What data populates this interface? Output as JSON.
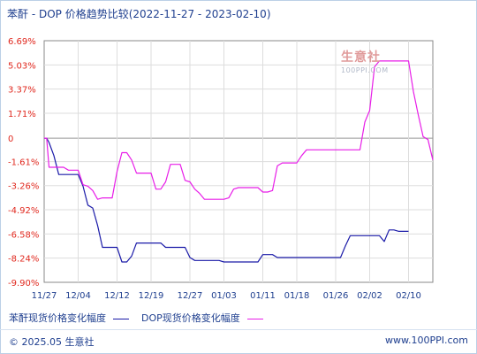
{
  "title": "苯酐 - DOP 价格趋势比较(2022-11-27 - 2023-02-10)",
  "watermark": {
    "logo": "生意社",
    "url": "100PPI.COM"
  },
  "footer": {
    "copyright": "© 2025.05 生意社",
    "site": "www.100PPI.com"
  },
  "colors": {
    "series_1": "#1a1aa8",
    "series_2": "#e81ee8",
    "grid": "#cccccc",
    "text": "#1f3f8f"
  },
  "chart_data": {
    "type": "line",
    "title": "苯酐 - DOP 价格趋势比较(2022-11-27 - 2023-02-10)",
    "xlabel": "",
    "ylabel": "",
    "ylim": [
      -9.9,
      6.69
    ],
    "yticks": [
      "6.69%",
      "5.03%",
      "3.37%",
      "1.71%",
      "0",
      "-1.61%",
      "-3.26%",
      "-4.92%",
      "-6.58%",
      "-8.24%",
      "-9.90%"
    ],
    "ytick_values": [
      6.69,
      5.03,
      3.37,
      1.71,
      0,
      -1.61,
      -3.26,
      -4.92,
      -6.58,
      -8.24,
      -9.9
    ],
    "xticks": [
      "11/27",
      "12/04",
      "12/12",
      "12/19",
      "12/27",
      "01/03",
      "01/11",
      "01/18",
      "01/26",
      "02/02",
      "02/10"
    ],
    "xtick_days": [
      0,
      7,
      15,
      22,
      30,
      37,
      45,
      52,
      60,
      67,
      75
    ],
    "grid": true,
    "legend_position": "bottom",
    "series": [
      {
        "name": "苯酐现货价格变化幅度",
        "color": "#1a1aa8",
        "points": [
          [
            0,
            0
          ],
          [
            0.5,
            0
          ],
          [
            1,
            -0.3
          ],
          [
            2,
            -1.2
          ],
          [
            3,
            -2.5
          ],
          [
            4,
            -2.5
          ],
          [
            5,
            -2.5
          ],
          [
            6,
            -2.5
          ],
          [
            7,
            -2.5
          ],
          [
            8,
            -3.3
          ],
          [
            9,
            -4.6
          ],
          [
            10,
            -4.8
          ],
          [
            11,
            -6.0
          ],
          [
            12,
            -7.5
          ],
          [
            13,
            -7.5
          ],
          [
            14,
            -7.5
          ],
          [
            15,
            -7.5
          ],
          [
            16,
            -8.5
          ],
          [
            17,
            -8.5
          ],
          [
            18,
            -8.1
          ],
          [
            19,
            -7.2
          ],
          [
            20,
            -7.2
          ],
          [
            21,
            -7.2
          ],
          [
            22,
            -7.2
          ],
          [
            23,
            -7.2
          ],
          [
            24,
            -7.2
          ],
          [
            25,
            -7.5
          ],
          [
            26,
            -7.5
          ],
          [
            27,
            -7.5
          ],
          [
            28,
            -7.5
          ],
          [
            29,
            -7.5
          ],
          [
            30,
            -8.2
          ],
          [
            31,
            -8.4
          ],
          [
            32,
            -8.4
          ],
          [
            33,
            -8.4
          ],
          [
            34,
            -8.4
          ],
          [
            35,
            -8.4
          ],
          [
            36,
            -8.4
          ],
          [
            37,
            -8.5
          ],
          [
            38,
            -8.5
          ],
          [
            39,
            -8.5
          ],
          [
            40,
            -8.5
          ],
          [
            41,
            -8.5
          ],
          [
            42,
            -8.5
          ],
          [
            43,
            -8.5
          ],
          [
            44,
            -8.5
          ],
          [
            45,
            -8.0
          ],
          [
            46,
            -8.0
          ],
          [
            47,
            -8.0
          ],
          [
            48,
            -8.2
          ],
          [
            49,
            -8.2
          ],
          [
            50,
            -8.2
          ],
          [
            51,
            -8.2
          ],
          [
            52,
            -8.2
          ],
          [
            53,
            -8.2
          ],
          [
            54,
            -8.2
          ],
          [
            55,
            -8.2
          ],
          [
            56,
            -8.2
          ],
          [
            57,
            -8.2
          ],
          [
            58,
            -8.2
          ],
          [
            59,
            -8.2
          ],
          [
            60,
            -8.2
          ],
          [
            61,
            -8.2
          ],
          [
            62,
            -7.4
          ],
          [
            63,
            -6.7
          ],
          [
            64,
            -6.7
          ],
          [
            65,
            -6.7
          ],
          [
            66,
            -6.7
          ],
          [
            67,
            -6.7
          ],
          [
            68,
            -6.7
          ],
          [
            69,
            -6.7
          ],
          [
            70,
            -7.1
          ],
          [
            71,
            -6.3
          ],
          [
            72,
            -6.3
          ],
          [
            73,
            -6.4
          ],
          [
            74,
            -6.4
          ],
          [
            75,
            -6.4
          ]
        ]
      },
      {
        "name": "DOP现货价格变化幅度",
        "color": "#e81ee8",
        "points": [
          [
            0,
            0
          ],
          [
            0.5,
            0
          ],
          [
            1,
            -2.0
          ],
          [
            2,
            -2.0
          ],
          [
            3,
            -2.0
          ],
          [
            4,
            -2.0
          ],
          [
            5,
            -2.2
          ],
          [
            6,
            -2.2
          ],
          [
            7,
            -2.2
          ],
          [
            8,
            -3.2
          ],
          [
            9,
            -3.3
          ],
          [
            10,
            -3.6
          ],
          [
            11,
            -4.2
          ],
          [
            12,
            -4.1
          ],
          [
            13,
            -4.1
          ],
          [
            14,
            -4.1
          ],
          [
            15,
            -2.3
          ],
          [
            16,
            -1.0
          ],
          [
            17,
            -1.0
          ],
          [
            18,
            -1.5
          ],
          [
            19,
            -2.4
          ],
          [
            20,
            -2.4
          ],
          [
            21,
            -2.4
          ],
          [
            22,
            -2.4
          ],
          [
            23,
            -3.5
          ],
          [
            24,
            -3.5
          ],
          [
            25,
            -3.0
          ],
          [
            26,
            -1.8
          ],
          [
            27,
            -1.8
          ],
          [
            28,
            -1.8
          ],
          [
            29,
            -2.9
          ],
          [
            30,
            -3.0
          ],
          [
            31,
            -3.5
          ],
          [
            32,
            -3.8
          ],
          [
            33,
            -4.2
          ],
          [
            34,
            -4.2
          ],
          [
            35,
            -4.2
          ],
          [
            36,
            -4.2
          ],
          [
            37,
            -4.2
          ],
          [
            38,
            -4.1
          ],
          [
            39,
            -3.5
          ],
          [
            40,
            -3.4
          ],
          [
            41,
            -3.4
          ],
          [
            42,
            -3.4
          ],
          [
            43,
            -3.4
          ],
          [
            44,
            -3.4
          ],
          [
            45,
            -3.7
          ],
          [
            46,
            -3.7
          ],
          [
            47,
            -3.6
          ],
          [
            48,
            -1.9
          ],
          [
            49,
            -1.7
          ],
          [
            50,
            -1.7
          ],
          [
            51,
            -1.7
          ],
          [
            52,
            -1.7
          ],
          [
            53,
            -1.2
          ],
          [
            54,
            -0.8
          ],
          [
            55,
            -0.8
          ],
          [
            56,
            -0.8
          ],
          [
            57,
            -0.8
          ],
          [
            58,
            -0.8
          ],
          [
            59,
            -0.8
          ],
          [
            60,
            -0.8
          ],
          [
            61,
            -0.8
          ],
          [
            62,
            -0.8
          ],
          [
            63,
            -0.8
          ],
          [
            64,
            -0.8
          ],
          [
            65,
            -0.8
          ],
          [
            66,
            1.1
          ],
          [
            67,
            1.9
          ],
          [
            68,
            4.9
          ],
          [
            69,
            5.3
          ],
          [
            70,
            5.3
          ],
          [
            71,
            5.3
          ],
          [
            72,
            5.3
          ],
          [
            73,
            5.3
          ],
          [
            74,
            5.3
          ],
          [
            75,
            5.3
          ],
          [
            76,
            3.2
          ],
          [
            77,
            1.6
          ],
          [
            78,
            0.1
          ],
          [
            79,
            -0.1
          ],
          [
            80,
            -1.5
          ]
        ]
      }
    ]
  }
}
